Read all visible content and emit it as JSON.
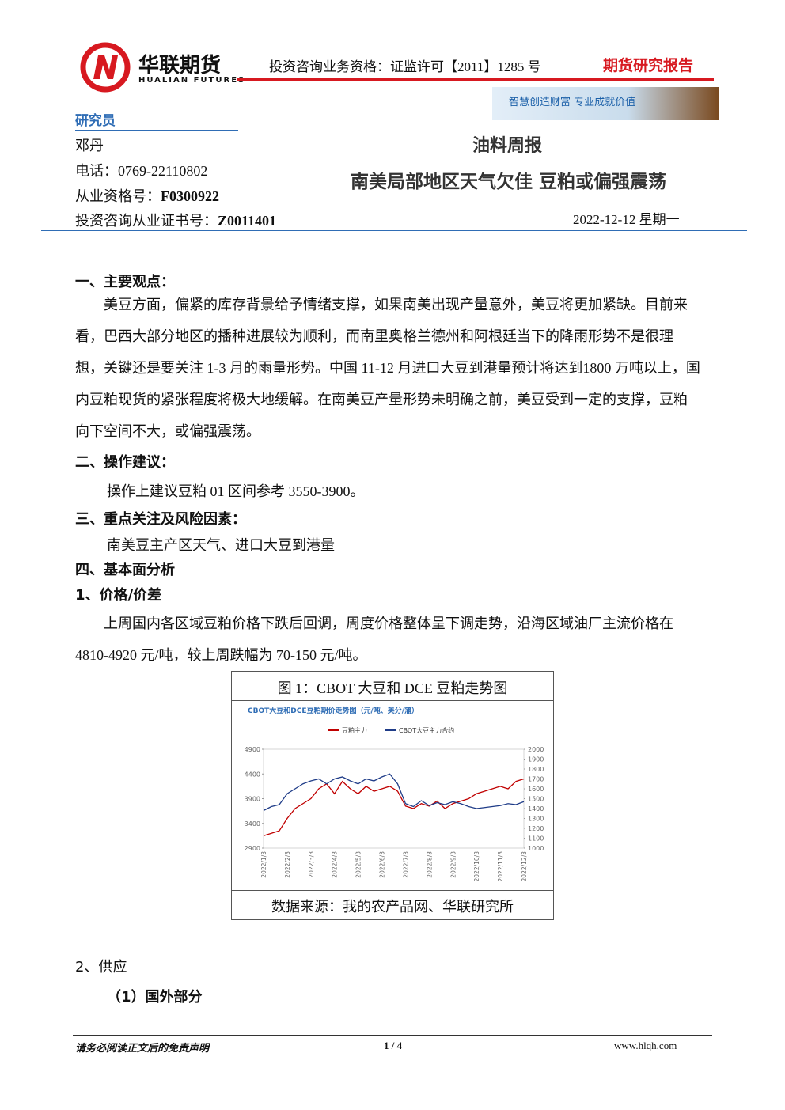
{
  "header": {
    "company_cn": "华联期货",
    "company_en": "HUALIAN FUTURES",
    "qualification": "投资咨询业务资格：证监许可【2011】1285 号",
    "report_type": "期货研究报告",
    "slogan": "智慧创造财富 专业成就价值"
  },
  "researcher": {
    "label": "研究员",
    "name": "邓丹",
    "phone": "电话：0769-22110802",
    "license": {
      "label": "从业资格号：",
      "value": "F0300922"
    },
    "advisory_license": {
      "label": "投资咨询从业证书号：",
      "value": "Z0011401"
    }
  },
  "title": {
    "category": "油料周报",
    "headline": "南美局部地区天气欠佳 豆粕或偏强震荡",
    "date": "2022-12-12 星期一"
  },
  "sections": [
    {
      "heading": "一、主要观点：",
      "paragraph": "美豆方面，偏紧的库存背景给予情绪支撑，如果南美出现产量意外，美豆将更加紧缺。目前来看，巴西大部分地区的播种进展较为顺利，而南里奥格兰德州和阿根廷当下的降雨形势不是很理想，关键还是要关注 1-3 月的雨量形势。中国 11-12 月进口大豆到港量预计将达到1800 万吨以上，国内豆粕现货的紧张程度将极大地缓解。在南美豆产量形势未明确之前，美豆受到一定的支撑，豆粕向下空间不大，或偏强震荡。"
    },
    {
      "heading": "二、操作建议：",
      "paragraph": "操作上建议豆粕 01 区间参考 3550-3900。"
    },
    {
      "heading": "三、重点关注及风险因素：",
      "paragraph": "南美豆主产区天气、进口大豆到港量"
    },
    {
      "heading": "四、基本面分析"
    },
    {
      "heading": "1、价格/价差",
      "paragraph": "上周国内各区域豆粕价格下跌后回调，周度价格整体呈下调走势，沿海区域油厂主流价格在 4810-4920 元/吨，较上周跌幅为 70-150 元/吨。"
    }
  ],
  "figure": {
    "caption": "图 1：CBOT 大豆和 DCE 豆粕走势图",
    "source": "数据来源：我的农产品网、华联研究所"
  },
  "chart_data": {
    "type": "line",
    "title": "CBOT大豆和DCE豆粕期价走势图（元/吨、美分/蒲）",
    "categories": [
      "2022/1/3",
      null,
      null,
      "2022/2/3",
      null,
      null,
      "2022/3/3",
      null,
      null,
      "2022/4/3",
      null,
      null,
      "2022/5/3",
      null,
      null,
      "2022/6/3",
      null,
      null,
      "2022/7/3",
      null,
      null,
      "2022/8/3",
      null,
      null,
      "2022/9/3",
      null,
      null,
      "2022/10/3",
      null,
      null,
      "2022/11/3",
      null,
      null,
      "2022/12/3"
    ],
    "series": [
      {
        "name": "豆粕主力",
        "color": "#c00000",
        "values": [
          3150,
          3200,
          3250,
          3500,
          3700,
          3800,
          3900,
          4100,
          4200,
          4000,
          4250,
          4100,
          4000,
          4150,
          4050,
          4100,
          4150,
          4050,
          3750,
          3700,
          3800,
          3750,
          3850,
          3700,
          3800,
          3850,
          3900,
          4000,
          4050,
          4100,
          4150,
          4100,
          4250,
          4300
        ]
      },
      {
        "name": "CBOT大豆主力合约",
        "color": "#1f3c88",
        "axis": "y2",
        "values": [
          1380,
          1420,
          1440,
          1550,
          1600,
          1650,
          1680,
          1700,
          1650,
          1700,
          1720,
          1680,
          1650,
          1700,
          1680,
          1720,
          1750,
          1650,
          1450,
          1420,
          1480,
          1430,
          1460,
          1440,
          1470,
          1450,
          1420,
          1400,
          1410,
          1420,
          1430,
          1450,
          1440,
          1470
        ]
      }
    ],
    "ylim": [
      2900,
      4900
    ],
    "yticks": [
      2900,
      3400,
      3900,
      4400,
      4900
    ],
    "y2lim": [
      1000,
      2000
    ],
    "y2ticks": [
      1000,
      1100,
      1200,
      1300,
      1400,
      1500,
      1600,
      1700,
      1800,
      1900,
      2000
    ]
  },
  "sections_after": [
    {
      "heading": "2、供应"
    },
    {
      "heading": "（1）国外部分"
    }
  ],
  "footer": {
    "disclaimer": "请务必阅读正文后的免责声明",
    "page": "1 / 4",
    "url": "www.hlqh.com"
  }
}
